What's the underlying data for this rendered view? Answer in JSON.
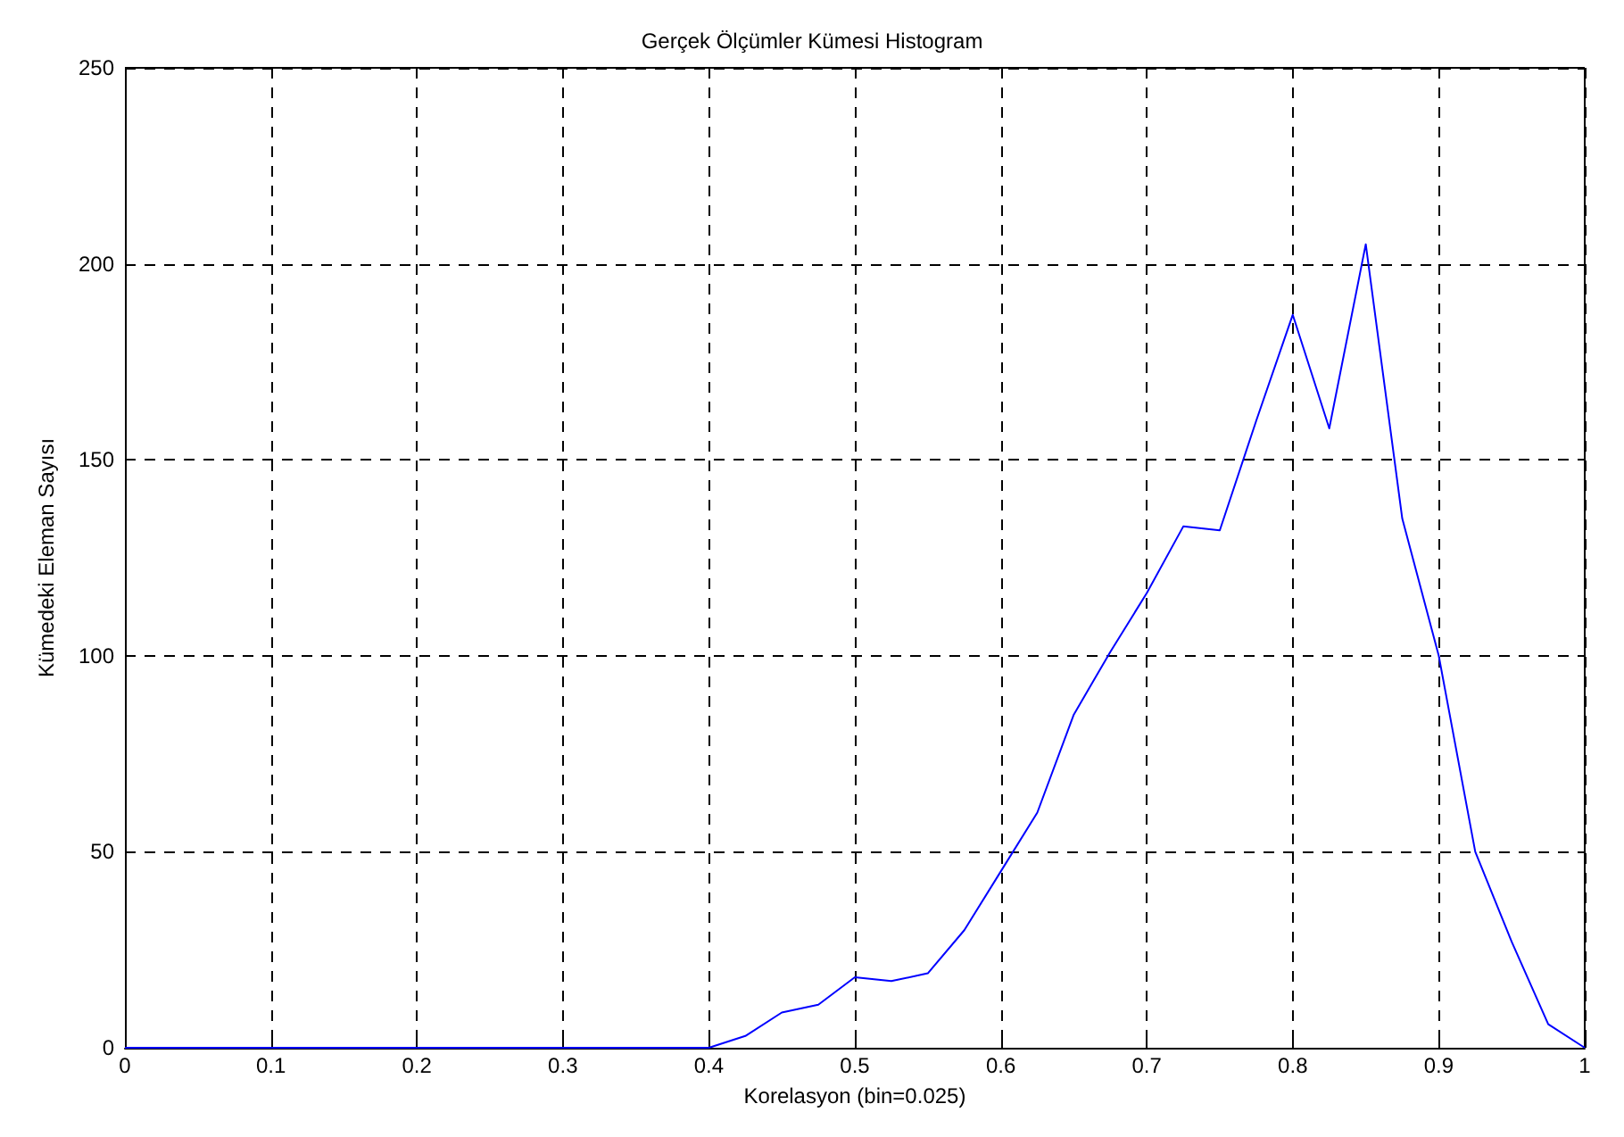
{
  "chart_data": {
    "type": "line",
    "title": "Gerçek Ölçümler Kümesi Histogram",
    "xlabel": "Korelasyon (bin=0.025)",
    "ylabel": "Kümedeki Eleman Sayısı",
    "x": [
      0,
      0.025,
      0.05,
      0.075,
      0.1,
      0.125,
      0.15,
      0.175,
      0.2,
      0.225,
      0.25,
      0.275,
      0.3,
      0.325,
      0.35,
      0.375,
      0.4,
      0.425,
      0.45,
      0.475,
      0.5,
      0.525,
      0.55,
      0.575,
      0.6,
      0.625,
      0.65,
      0.675,
      0.7,
      0.725,
      0.75,
      0.775,
      0.8,
      0.825,
      0.85,
      0.875,
      0.9,
      0.925,
      0.95,
      0.975,
      1
    ],
    "series": [
      {
        "color": "#0000ff",
        "values": [
          0,
          0,
          0,
          0,
          0,
          0,
          0,
          0,
          0,
          0,
          0,
          0,
          0,
          0,
          0,
          0,
          0,
          3,
          9,
          11,
          18,
          17,
          19,
          30,
          45,
          60,
          85,
          101,
          116,
          133,
          132,
          160,
          187,
          158,
          205,
          135,
          100,
          50,
          27,
          6,
          0
        ]
      }
    ],
    "xlim": [
      0,
      1
    ],
    "xticks": [
      0,
      0.1,
      0.2,
      0.3,
      0.4,
      0.5,
      0.6,
      0.7,
      0.8,
      0.9,
      1
    ],
    "ylim": [
      0,
      250
    ],
    "yticks": [
      0,
      50,
      100,
      150,
      200,
      250
    ],
    "grid": true,
    "marker": "none",
    "line_style": "solid"
  }
}
